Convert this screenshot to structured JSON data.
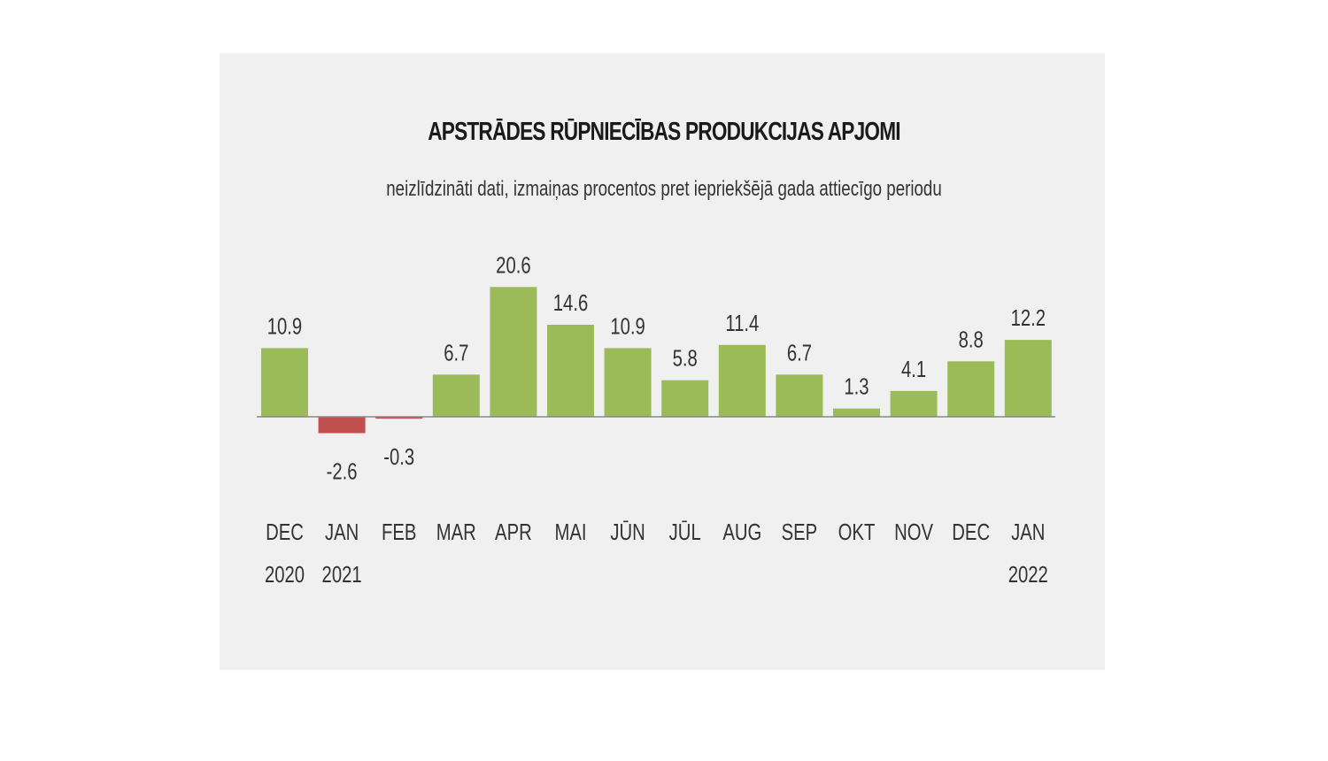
{
  "chart_data": {
    "type": "bar",
    "title": "APSTRĀDES RŪPNIECĪBAS PRODUKCIJAS APJOMI",
    "subtitle": "neizlīdzināti dati, izmaiņas procentos pret iepriekšējā gada attiecīgo periodu",
    "categories": [
      "DEC",
      "JAN",
      "FEB",
      "MAR",
      "APR",
      "MAI",
      "JŪN",
      "JŪL",
      "AUG",
      "SEP",
      "OKT",
      "NOV",
      "DEC",
      "JAN"
    ],
    "years": [
      "2020",
      "2021",
      "",
      "",
      "",
      "",
      "",
      "",
      "",
      "",
      "",
      "",
      "",
      "2022"
    ],
    "values": [
      10.9,
      -2.6,
      -0.3,
      6.7,
      20.6,
      14.6,
      10.9,
      5.8,
      11.4,
      6.7,
      1.3,
      4.1,
      8.8,
      12.2
    ],
    "value_labels": [
      "10.9",
      "-2.6",
      "-0.3",
      "6.7",
      "20.6",
      "14.6",
      "10.9",
      "5.8",
      "11.4",
      "6.7",
      "1.3",
      "4.1",
      "8.8",
      "12.2"
    ],
    "xlabel": "",
    "ylabel": "",
    "ylim": [
      -3,
      21
    ],
    "colors": {
      "positive": "#9bbb59",
      "negative": "#c0504d",
      "axis": "#888888",
      "background": "#f0f0f0"
    }
  }
}
